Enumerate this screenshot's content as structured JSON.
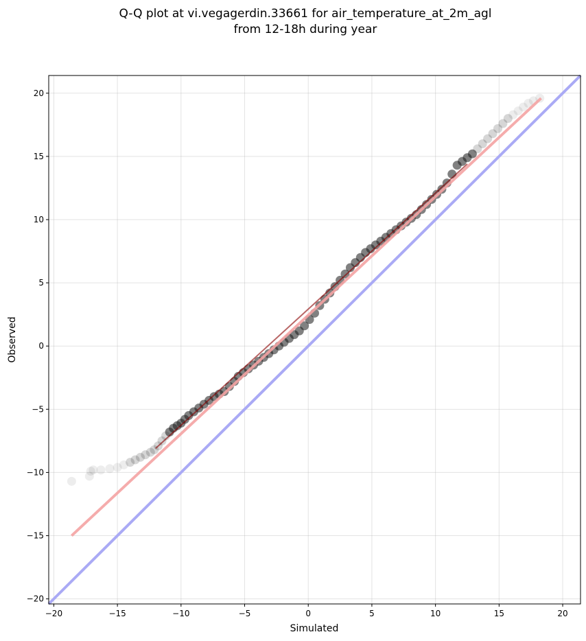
{
  "chart_data": {
    "type": "scatter",
    "title": "Q-Q plot at vi.vegagerdin.33661 for air_temperature_at_2m_agl",
    "subtitle": "from 12-18h during year",
    "xlabel": "Simulated",
    "ylabel": "Observed",
    "xlim": [
      -20.4,
      21.4
    ],
    "ylim": [
      -20.4,
      21.4
    ],
    "x_ticks": [
      -20,
      -15,
      -10,
      -5,
      0,
      5,
      10,
      15,
      20
    ],
    "y_ticks": [
      -20,
      -15,
      -10,
      -5,
      0,
      5,
      10,
      15,
      20
    ],
    "x_tick_labels": [
      "−20",
      "−15",
      "−10",
      "−5",
      "0",
      "5",
      "10",
      "15",
      "20"
    ],
    "y_tick_labels": [
      "−20",
      "−15",
      "−10",
      "−5",
      "0",
      "5",
      "10",
      "15",
      "20"
    ],
    "grid": true,
    "quantile_points": {
      "x": [
        -18.6,
        -17.2,
        -17.1,
        -16.9,
        -16.3,
        -15.6,
        -15.0,
        -14.5,
        -14.0,
        -13.6,
        -13.2,
        -12.8,
        -12.4,
        -12.1,
        -11.8,
        -11.5,
        -11.2,
        -10.9,
        -10.6,
        -10.3,
        -10.0,
        -9.7,
        -9.4,
        -9.0,
        -8.6,
        -8.2,
        -7.8,
        -7.4,
        -7.0,
        -6.6,
        -6.2,
        -5.8,
        -5.5,
        -5.1,
        -4.7,
        -4.3,
        -3.9,
        -3.5,
        -3.1,
        -2.7,
        -2.3,
        -1.9,
        -1.5,
        -1.1,
        -0.7,
        -0.3,
        0.1,
        0.5,
        0.9,
        1.3,
        1.7,
        2.1,
        2.5,
        2.9,
        3.3,
        3.7,
        4.1,
        4.5,
        4.9,
        5.3,
        5.7,
        6.1,
        6.5,
        6.9,
        7.3,
        7.7,
        8.1,
        8.5,
        8.9,
        9.3,
        9.7,
        10.1,
        10.5,
        10.9,
        11.3,
        11.7,
        12.1,
        12.5,
        12.9,
        13.3,
        13.7,
        14.1,
        14.5,
        14.9,
        15.3,
        15.7,
        16.1,
        16.5,
        16.9,
        17.3,
        17.7,
        18.2
      ],
      "y": [
        -10.7,
        -10.3,
        -9.9,
        -9.8,
        -9.8,
        -9.7,
        -9.6,
        -9.4,
        -9.2,
        -9.0,
        -8.8,
        -8.6,
        -8.4,
        -8.2,
        -7.9,
        -7.5,
        -7.1,
        -6.8,
        -6.5,
        -6.3,
        -6.1,
        -5.8,
        -5.5,
        -5.2,
        -4.9,
        -4.6,
        -4.3,
        -4.0,
        -3.8,
        -3.6,
        -3.2,
        -2.8,
        -2.4,
        -2.1,
        -1.8,
        -1.5,
        -1.2,
        -0.9,
        -0.6,
        -0.3,
        0.0,
        0.3,
        0.6,
        0.9,
        1.2,
        1.6,
        2.1,
        2.6,
        3.2,
        3.7,
        4.2,
        4.7,
        5.2,
        5.7,
        6.2,
        6.6,
        7.0,
        7.4,
        7.7,
        8.0,
        8.3,
        8.6,
        8.9,
        9.2,
        9.5,
        9.8,
        10.1,
        10.4,
        10.8,
        11.2,
        11.6,
        12.0,
        12.4,
        12.9,
        13.6,
        14.3,
        14.6,
        14.9,
        15.2,
        15.6,
        16.0,
        16.4,
        16.8,
        17.2,
        17.6,
        18.0,
        18.3,
        18.6,
        18.9,
        19.2,
        19.4,
        19.6
      ],
      "color": "#1a1a1a"
    },
    "fit_line": {
      "x": [
        -18.6,
        18.3
      ],
      "y": [
        -15.0,
        19.6
      ],
      "color": "#f4a3a3"
    },
    "identity_line": {
      "x": [
        -20.4,
        21.4
      ],
      "y": [
        -20.4,
        21.4
      ],
      "color": "#aaaaf5"
    }
  }
}
